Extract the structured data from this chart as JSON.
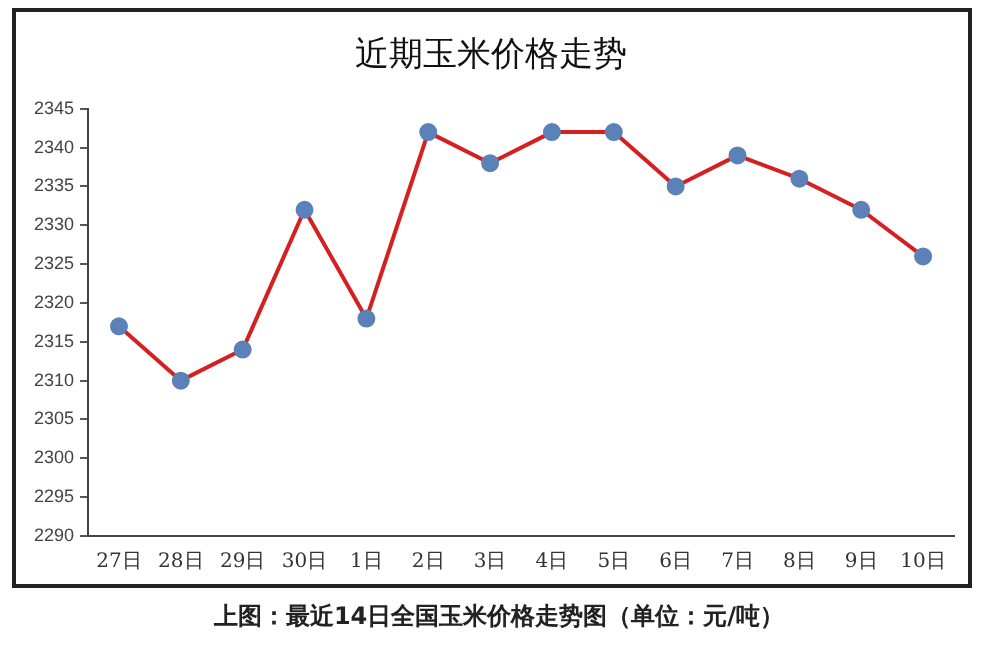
{
  "chart_data": {
    "type": "line",
    "title": "近期玉米价格走势",
    "categories": [
      "27日",
      "28日",
      "29日",
      "30日",
      "1日",
      "2日",
      "3日",
      "4日",
      "5日",
      "6日",
      "7日",
      "8日",
      "9日",
      "10日"
    ],
    "series": [
      {
        "color": "#d42020",
        "values": [
          2317,
          2310,
          2314,
          2332,
          2318,
          2342,
          2338,
          2342,
          2342,
          2335,
          2339,
          2336,
          2332,
          2326
        ]
      }
    ],
    "ylim": [
      2290,
      2345
    ],
    "yticks": [
      2290,
      2295,
      2300,
      2305,
      2310,
      2315,
      2320,
      2325,
      2330,
      2335,
      2340,
      2345
    ],
    "grid": false,
    "legend": false,
    "marker": "circle",
    "annotations": [
      "上图：最近14日全国玉米价格走势图（单位：元/吨）"
    ]
  }
}
